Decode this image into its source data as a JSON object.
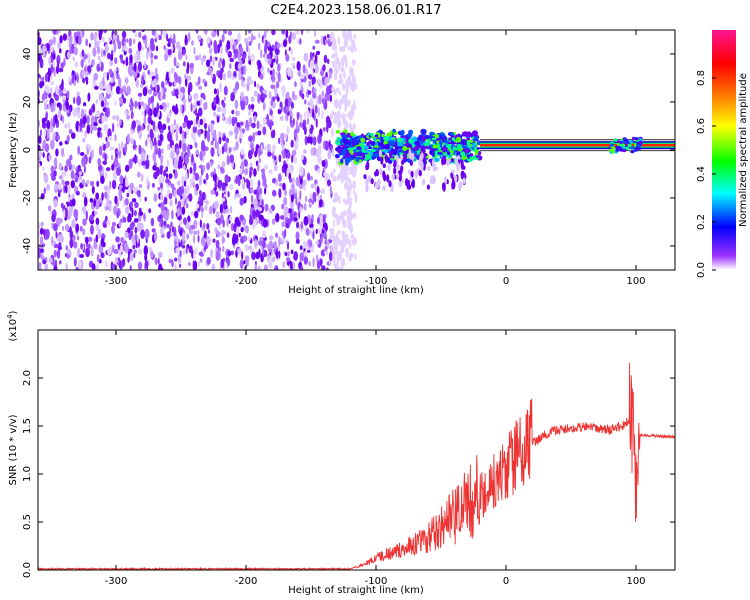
{
  "title": "C2E4.2023.158.06.01.R17",
  "chart_data": [
    {
      "type": "heatmap",
      "xlabel": "Height of straight line (km)",
      "ylabel": "Frequency (Hz)",
      "xlim": [
        -360,
        130
      ],
      "ylim": [
        -50,
        50
      ],
      "xticks": [
        -300,
        -200,
        -100,
        0,
        100
      ],
      "yticks": [
        -40,
        -20,
        0,
        20,
        40
      ],
      "grid": false,
      "noise_region_x": [
        -360,
        -120
      ],
      "signal_line_frequency_hz": 2,
      "colorbar": {
        "label": "Normalized spectral amplitude",
        "range": [
          0,
          1
        ],
        "ticks": [
          "0.0",
          "0.2",
          "0.4",
          "0.6",
          "0.8"
        ],
        "colors": [
          "#ffffff",
          "#9b30ff",
          "#0000ff",
          "#00ffff",
          "#00ff00",
          "#ffff00",
          "#ff8000",
          "#ff0000",
          "#ff1493"
        ]
      }
    },
    {
      "type": "line",
      "xlabel": "Height of straight line (km)",
      "ylabel": "SNR (10 * v/v)",
      "y_multiplier": "(x10",
      "y_multiplier_exp": "4",
      "y_multiplier_close": ")",
      "xlim": [
        -360,
        130
      ],
      "ylim": [
        0,
        2.5
      ],
      "xticks": [
        -300,
        -200,
        -100,
        0,
        100
      ],
      "yticks": [
        "0.0",
        "0.5",
        "1.0",
        "1.5",
        "2.0"
      ],
      "color": "#ee3333",
      "grid": false,
      "profile_x": [
        -360,
        -120,
        -110,
        -100,
        -80,
        -60,
        -40,
        -30,
        -20,
        -15,
        -10,
        0,
        10,
        20,
        30,
        40,
        60,
        80,
        90,
        95,
        98,
        100,
        102,
        105,
        110,
        130
      ],
      "profile_y": [
        0.01,
        0.01,
        0.05,
        0.12,
        0.2,
        0.3,
        0.5,
        0.6,
        0.7,
        0.75,
        0.85,
        1.0,
        1.15,
        1.3,
        1.4,
        1.45,
        1.48,
        1.45,
        1.5,
        1.55,
        1.3,
        0.6,
        1.4,
        1.4,
        1.4,
        1.38
      ]
    }
  ]
}
